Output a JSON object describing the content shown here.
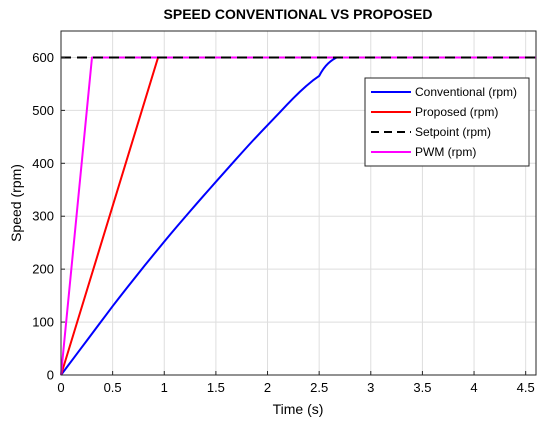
{
  "chart_data": {
    "type": "line",
    "title": "SPEED CONVENTIONAL VS PROPOSED",
    "xlabel": "Time (s)",
    "ylabel": "Speed (rpm)",
    "xlim": [
      0,
      4.6
    ],
    "ylim": [
      0,
      650
    ],
    "xticks": [
      0,
      0.5,
      1,
      1.5,
      2,
      2.5,
      3,
      3.5,
      4,
      4.5
    ],
    "xtick_labels": [
      "0",
      "0.5",
      "1",
      "1.5",
      "2",
      "2.5",
      "3",
      "3.5",
      "4",
      "4.5"
    ],
    "yticks": [
      0,
      100,
      200,
      300,
      400,
      500,
      600
    ],
    "ytick_labels": [
      "0",
      "100",
      "200",
      "300",
      "400",
      "500",
      "600"
    ],
    "grid": true,
    "legend_position": "top-right",
    "series": [
      {
        "name": "Conventional (rpm)",
        "color": "#0000ff",
        "style": "solid",
        "x": [
          0,
          0.5,
          1.0,
          1.5,
          2.0,
          2.5,
          2.67,
          4.6
        ],
        "y": [
          0,
          130,
          252,
          365,
          472,
          565,
          600,
          600
        ]
      },
      {
        "name": "Proposed (rpm)",
        "color": "#ff0000",
        "style": "solid",
        "x": [
          0,
          0.94,
          4.6
        ],
        "y": [
          0,
          600,
          600
        ]
      },
      {
        "name": "Setpoint (rpm)",
        "color": "#000000",
        "style": "dashed",
        "x": [
          0,
          4.6
        ],
        "y": [
          600,
          600
        ]
      },
      {
        "name": "PWM (rpm)",
        "color": "#ff00ff",
        "style": "solid",
        "x": [
          0,
          0.3,
          4.6
        ],
        "y": [
          0,
          600,
          600
        ]
      }
    ],
    "legend_order": [
      0,
      1,
      2,
      3
    ]
  }
}
